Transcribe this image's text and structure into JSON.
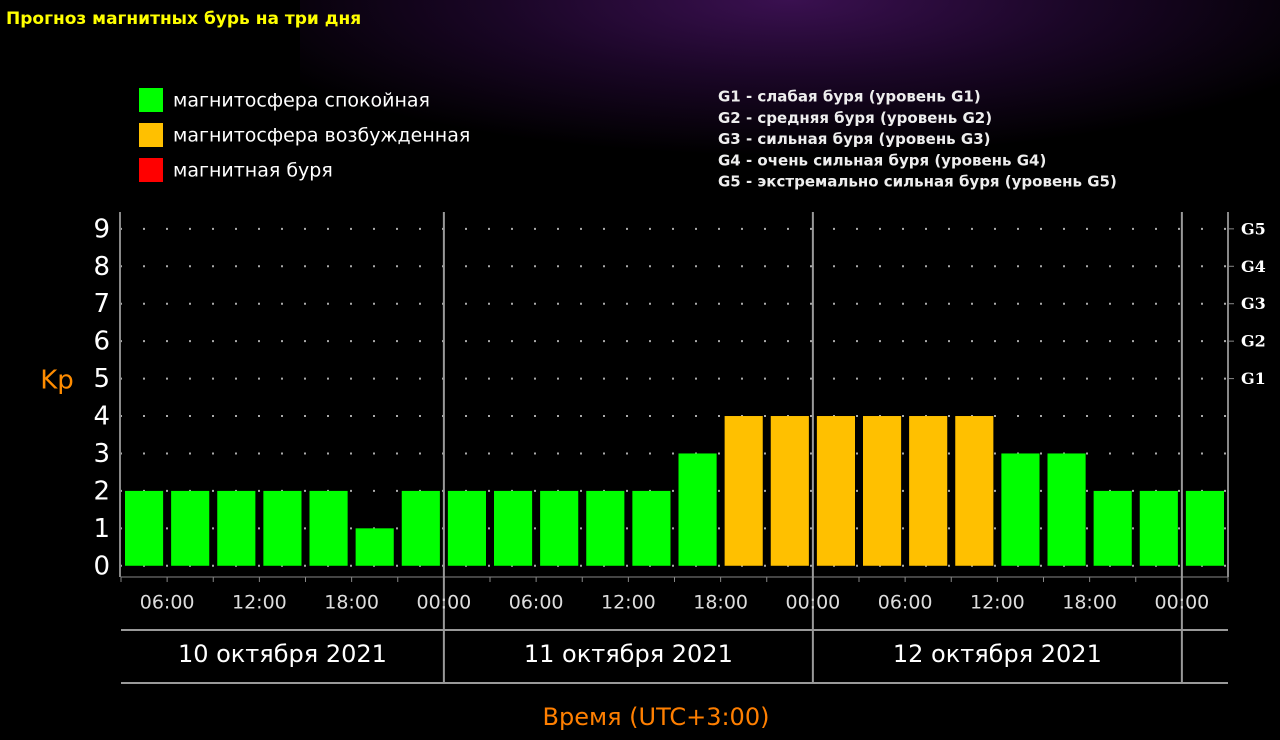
{
  "chart_data": {
    "type": "bar",
    "title": "Прогноз магнитных бурь на три дня",
    "ylabel": "Kp",
    "xlabel": "Время (UTC+3:00)",
    "categories": [
      null,
      null,
      null,
      null,
      null,
      null,
      null,
      null,
      null,
      null,
      null,
      null,
      null,
      null,
      null,
      null,
      null,
      null,
      null,
      null,
      null,
      null,
      null,
      null
    ],
    "series": [
      {
        "name": "магнитосфера спокойная",
        "color": "#00ff00",
        "values": [
          2,
          2,
          2,
          2,
          2,
          1,
          2,
          2,
          2,
          2,
          2,
          2,
          3,
          null,
          null,
          null,
          null,
          null,
          null,
          3,
          3,
          2,
          2,
          2
        ]
      },
      {
        "name": "магнитосфера возбужденная",
        "color": "#ffc000",
        "values": [
          null,
          null,
          null,
          null,
          null,
          null,
          null,
          null,
          null,
          null,
          null,
          null,
          null,
          4,
          4,
          4,
          4,
          4,
          4,
          null,
          null,
          null,
          null,
          null
        ]
      },
      {
        "name": "магнитная буря",
        "color": "#ff0000",
        "values": [
          null,
          null,
          null,
          null,
          null,
          null,
          null,
          null,
          null,
          null,
          null,
          null,
          null,
          null,
          null,
          null,
          null,
          null,
          null,
          null,
          null,
          null,
          null,
          null
        ]
      }
    ],
    "ylim": [
      -0.3,
      9.45
    ],
    "yticks": [
      0,
      1,
      2,
      3,
      4,
      5,
      6,
      7,
      8,
      9
    ],
    "y2lim": [
      -0.3,
      9.45
    ],
    "y2ticks": [
      {
        "value": 5,
        "label": "G1"
      },
      {
        "value": 6,
        "label": "G2"
      },
      {
        "value": 7,
        "label": "G3"
      },
      {
        "value": 8,
        "label": "G4"
      },
      {
        "value": 9,
        "label": "G5"
      }
    ],
    "x_tick_labels": [
      "06:00",
      "12:00",
      "18:00",
      "00:00",
      "06:00",
      "12:00",
      "18:00",
      "00:00",
      "06:00",
      "12:00",
      "18:00",
      "00:00"
    ],
    "days": [
      "10 октября 2021",
      "11 октября 2021",
      "12 октября 2021"
    ],
    "scale_notes": [
      "G1 - слабая буря (уровень G1)",
      "G2 - средняя буря (уровень G2)",
      "G3 - сильная буря (уровень G3)",
      "G4 - очень сильная буря (уровень G4)",
      "G5 - экстремально сильная буря (уровень G5)"
    ],
    "grid": true
  }
}
